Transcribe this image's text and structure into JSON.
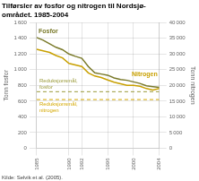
{
  "chart_data": {
    "type": "line",
    "title": "Tilførsler av fosfor og nitrogen til Nordsjø-\nområdet. 1985-2004",
    "x": [
      1985,
      1986,
      1987,
      1988,
      1989,
      1990,
      1991,
      1992,
      1993,
      1994,
      1995,
      1996,
      1997,
      1998,
      1999,
      2000,
      2001,
      2002,
      2003,
      2004
    ],
    "xlim": [
      1985,
      2004
    ],
    "xticks": [
      1985,
      1990,
      1992,
      1996,
      2000,
      2004
    ],
    "ylabel": "Tonn fosfor",
    "ylim": [
      0,
      1600
    ],
    "yticks": [
      0,
      200,
      400,
      600,
      800,
      {
        "value": 1000,
        "label": "1 000"
      },
      {
        "value": 1200,
        "label": "1 200"
      },
      {
        "value": 1400,
        "label": "1 400"
      },
      {
        "value": 1600,
        "label": "1 600"
      }
    ],
    "y2label": "Tonn nitrogen",
    "y2lim": [
      0,
      40000
    ],
    "y2ticks": [
      0,
      {
        "value": 5000,
        "label": "5 000"
      },
      {
        "value": 10000,
        "label": "10 000"
      },
      {
        "value": 15000,
        "label": "15 000"
      },
      {
        "value": 20000,
        "label": "20 000"
      },
      {
        "value": 25000,
        "label": "25 000"
      },
      {
        "value": 30000,
        "label": "30 000"
      },
      {
        "value": 35000,
        "label": "35 000"
      },
      {
        "value": 40000,
        "label": "40 000"
      }
    ],
    "grid": true,
    "series": [
      {
        "name": "Fosfor",
        "color": "#7a7a2a",
        "axis": "y",
        "values": [
          1410,
          1375,
          1330,
          1285,
          1255,
          1200,
          1170,
          1145,
          1040,
          960,
          945,
          930,
          895,
          875,
          865,
          845,
          825,
          795,
          785,
          775
        ]
      },
      {
        "name": "Nitrogen",
        "color": "#c8a000",
        "axis": "y2",
        "values": [
          31500,
          31000,
          30500,
          29500,
          28750,
          27000,
          26500,
          26000,
          24000,
          23000,
          22500,
          21750,
          21000,
          20500,
          20000,
          20000,
          19750,
          19000,
          18500,
          19000
        ]
      },
      {
        "name": "Reduksjonsmål,\nfosfor",
        "type": "hline",
        "value": 720,
        "color": "#9a9a3a",
        "line_style": "dashed",
        "axis": "y"
      },
      {
        "name": "Reduksjonsmål,\nnitrogen",
        "type": "hline",
        "value": 15500,
        "color": "#d4a800",
        "line_style": "dashed",
        "axis": "y2"
      }
    ],
    "annotations": [
      "Kilde: Selvik et al. (2005)."
    ]
  }
}
